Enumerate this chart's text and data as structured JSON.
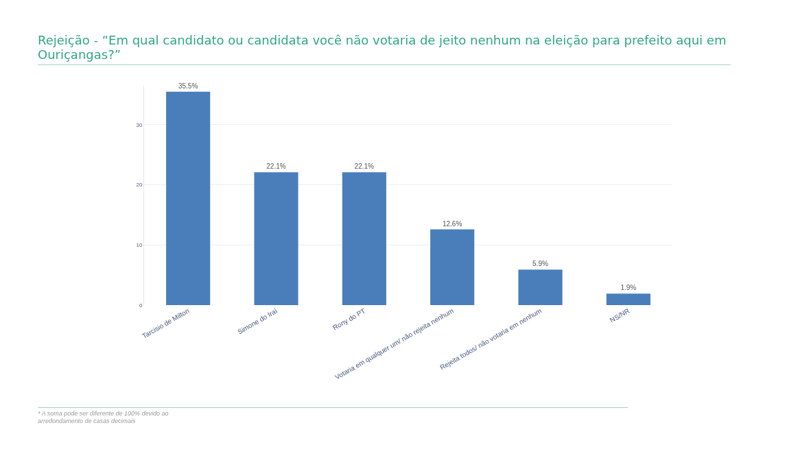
{
  "chart_data": {
    "type": "bar",
    "title": "Rejeição - “Em qual candidato ou candidata você não votaria de jeito nenhum na eleição para prefeito aqui em Ouriçangas?”",
    "categories": [
      "Tarcisio de Milton",
      "Simone do Iraí",
      "Rony do PT",
      "Votaria em qualquer um/ não rejeita nenhum",
      "Rejeita todos/ não votaria em nenhum",
      "NS/NR"
    ],
    "values": [
      35.5,
      22.1,
      22.1,
      12.6,
      5.9,
      1.9
    ],
    "value_labels": [
      "35.5%",
      "22.1%",
      "22.1%",
      "12.6%",
      "5.9%",
      "1.9%"
    ],
    "color": "#4a7ebb",
    "ylim": [
      0,
      36.5
    ],
    "yticks": [
      0,
      10,
      20,
      30
    ],
    "grid": "y",
    "annotations": [
      "* A soma pode ser diferente de 100% devido ao arredondamento de casas decimais"
    ]
  }
}
